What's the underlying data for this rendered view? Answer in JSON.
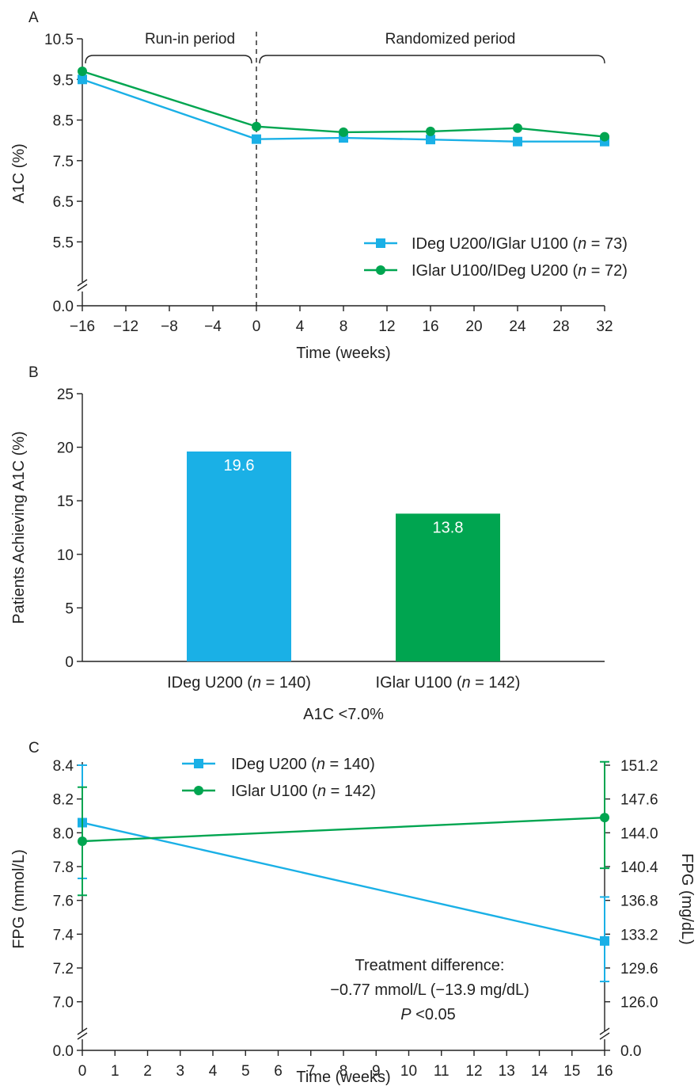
{
  "colors": {
    "blue": "#1ab0e6",
    "green": "#00a550"
  },
  "chart_data": [
    {
      "panel": "A",
      "type": "line",
      "xlabel": "Time (weeks)",
      "ylabel": "A1C (%)",
      "xticks": [
        "−16",
        "−12",
        "−8",
        "−4",
        "0",
        "4",
        "8",
        "12",
        "16",
        "20",
        "24",
        "28",
        "32"
      ],
      "xtick_values": [
        -16,
        -12,
        -8,
        -4,
        0,
        4,
        8,
        12,
        16,
        20,
        24,
        28,
        32
      ],
      "yticks": [
        "0.0",
        "5.5",
        "6.5",
        "7.5",
        "8.5",
        "9.5",
        "10.5"
      ],
      "ytick_values": [
        0,
        5.5,
        6.5,
        7.5,
        8.5,
        9.5,
        10.5
      ],
      "xlim": [
        -16,
        32
      ],
      "ylim_upper": [
        5.0,
        10.5
      ],
      "axis_break": true,
      "annotations": {
        "run_in": "Run-in period",
        "randomized": "Randomized period"
      },
      "series": [
        {
          "legend_main": "IDeg U200/IGlar U100 (",
          "legend_n": "n",
          "legend_rest": " = 73)",
          "color": "blue",
          "marker": "square",
          "x": [
            -16,
            0,
            8,
            16,
            24,
            32
          ],
          "y": [
            9.5,
            8.03,
            8.06,
            8.02,
            7.97,
            7.97
          ]
        },
        {
          "legend_main": "IGlar U100/IDeg U200 (",
          "legend_n": "n",
          "legend_rest": " = 72)",
          "color": "green",
          "marker": "circle",
          "x": [
            -16,
            0,
            8,
            16,
            24,
            32
          ],
          "y": [
            9.7,
            8.34,
            8.2,
            8.22,
            8.3,
            8.09
          ]
        }
      ]
    },
    {
      "panel": "B",
      "type": "bar",
      "ylabel": "Patients Achieving A1C (%)",
      "xlabel": "A1C <7.0%",
      "yticks": [
        "0",
        "5",
        "10",
        "15",
        "20",
        "25"
      ],
      "ytick_values": [
        0,
        5,
        10,
        15,
        20,
        25
      ],
      "ylim": [
        0,
        25
      ],
      "categories": [
        {
          "main": "IDeg U200 (",
          "n": "n",
          "rest": " = 140)"
        },
        {
          "main": "IGlar U100 (",
          "n": "n",
          "rest": " = 142)"
        }
      ],
      "values": [
        19.6,
        13.8
      ],
      "value_labels": [
        "19.6",
        "13.8"
      ],
      "bar_colors": [
        "blue",
        "green"
      ]
    },
    {
      "panel": "C",
      "type": "line",
      "xlabel": "Time (weeks)",
      "ylabel_left": "FPG (mmol/L)",
      "ylabel_right": "FPG (mg/dL)",
      "xticks": [
        "0",
        "1",
        "2",
        "3",
        "4",
        "5",
        "6",
        "7",
        "8",
        "9",
        "10",
        "11",
        "12",
        "13",
        "14",
        "15",
        "16"
      ],
      "xlim": [
        0,
        16
      ],
      "yticks_left": [
        "0.0",
        "7.0",
        "7.2",
        "7.4",
        "7.6",
        "7.8",
        "8.0",
        "8.2",
        "8.4"
      ],
      "ytick_values_left": [
        0,
        7.0,
        7.2,
        7.4,
        7.6,
        7.8,
        8.0,
        8.2,
        8.4
      ],
      "yticks_right": [
        "0.0",
        "126.0",
        "129.6",
        "133.2",
        "136.8",
        "140.4",
        "144.0",
        "147.6",
        "151.2"
      ],
      "ytick_values_right": [
        0,
        126.0,
        129.6,
        133.2,
        136.8,
        140.4,
        144.0,
        147.6,
        151.2
      ],
      "ylim_upper": [
        6.9,
        8.4
      ],
      "axis_break": true,
      "series": [
        {
          "legend_main": "IDeg U200 (",
          "legend_n": "n",
          "legend_rest": " = 140)",
          "color": "blue",
          "marker": "square",
          "x": [
            0,
            16
          ],
          "y": [
            8.06,
            7.36
          ],
          "error_low": [
            7.73,
            7.12
          ],
          "error_high": [
            8.4,
            7.62
          ]
        },
        {
          "legend_main": "IGlar U100 (",
          "legend_n": "n",
          "legend_rest": " = 142)",
          "color": "green",
          "marker": "circle",
          "x": [
            0,
            16
          ],
          "y": [
            7.95,
            8.09
          ],
          "error_low": [
            7.63,
            7.79
          ],
          "error_high": [
            8.27,
            8.42
          ]
        }
      ],
      "annotation": {
        "line1": "Treatment difference:",
        "line2": "−0.77 mmol/L (−13.9 mg/dL)",
        "line3_italic": "P",
        "line3_rest": " <0.05"
      }
    }
  ]
}
